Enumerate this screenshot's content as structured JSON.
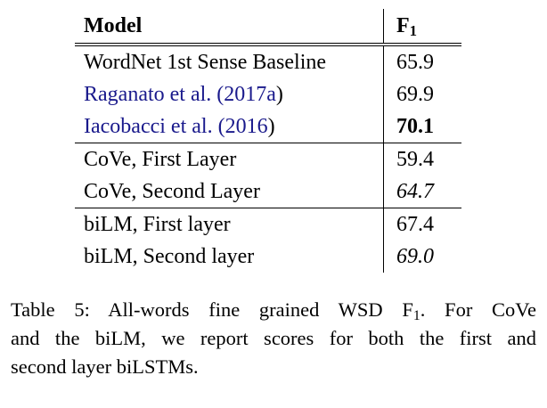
{
  "table": {
    "header": {
      "model": "Model",
      "f1_base": "F",
      "f1_sub": "1"
    },
    "rows": [
      {
        "model": "WordNet 1st Sense Baseline",
        "f1": "65.9",
        "style": "normal"
      },
      {
        "model_a": "Raganato et al. (",
        "model_year": "2017a",
        "model_b": ")",
        "f1": "69.9",
        "style": "normal"
      },
      {
        "model_a": "Iacobacci et al. (",
        "model_year": "2016",
        "model_b": ")",
        "f1": "70.1",
        "style": "bold"
      },
      {
        "model": "CoVe, First Layer",
        "f1": "59.4",
        "style": "normal"
      },
      {
        "model": "CoVe, Second Layer",
        "f1": "64.7",
        "style": "italic"
      },
      {
        "model": "biLM, First layer",
        "f1": "67.4",
        "style": "normal"
      },
      {
        "model": "biLM, Second layer",
        "f1": "69.0",
        "style": "italic"
      }
    ]
  },
  "caption": {
    "line1_a": "Table 5: All-words fine grained WSD F",
    "line1_sub": "1",
    "line1_b": ".  For CoVe",
    "line2": "and the biLM, we report scores for both the first and",
    "line3": "second layer biLSTMs."
  }
}
